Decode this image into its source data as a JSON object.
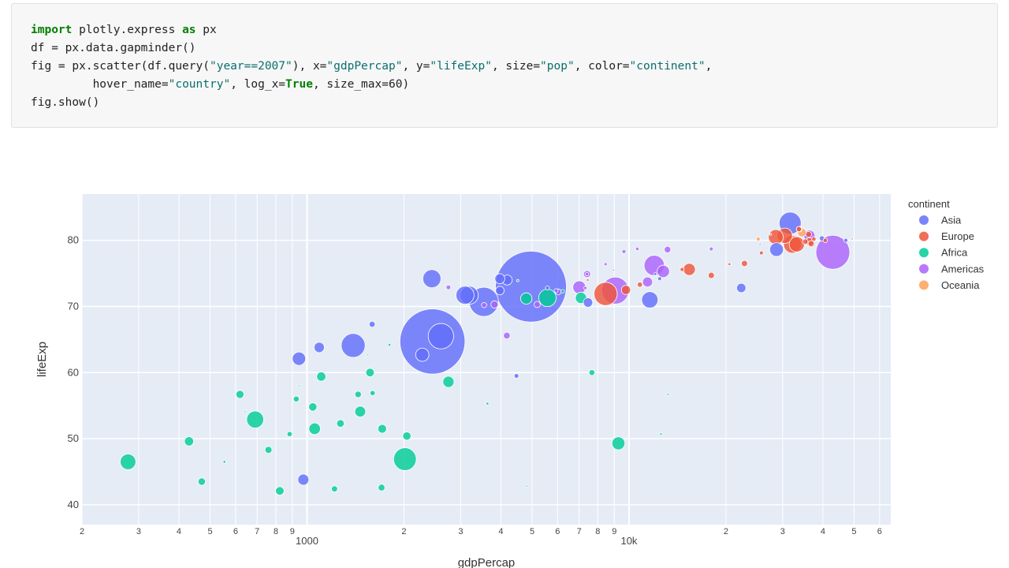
{
  "code": {
    "line1": {
      "kw": "import",
      "mid": " plotly.express ",
      "kw2": "as",
      "end": " px"
    },
    "line2": "df = px.data.gapminder()",
    "line3": {
      "a": "fig = px.scatter(df.query(",
      "s1": "\"year==2007\"",
      "b": "), x=",
      "s2": "\"gdpPercap\"",
      "c": ", y=",
      "s3": "\"lifeExp\"",
      "d": ", size=",
      "s4": "\"pop\"",
      "e": ", color=",
      "s5": "\"continent\"",
      "f": ","
    },
    "line4": {
      "a": "         hover_name=",
      "s1": "\"country\"",
      "b": ", log_x=",
      "kw": "True",
      "c": ", size_max=60)"
    },
    "line5": "fig.show()"
  },
  "chart_data": {
    "type": "scatter",
    "xlabel": "gdpPercap",
    "ylabel": "lifeExp",
    "x_scale": "log",
    "xlim": [
      200,
      65000
    ],
    "ylim": [
      37,
      87
    ],
    "x_ticks_major": [
      {
        "v": 1000,
        "label": "1000"
      },
      {
        "v": 10000,
        "label": "10k"
      }
    ],
    "x_ticks_minor": [
      {
        "v": 200,
        "label": "2"
      },
      {
        "v": 300,
        "label": "3"
      },
      {
        "v": 400,
        "label": "4"
      },
      {
        "v": 500,
        "label": "5"
      },
      {
        "v": 600,
        "label": "6"
      },
      {
        "v": 700,
        "label": "7"
      },
      {
        "v": 800,
        "label": "8"
      },
      {
        "v": 900,
        "label": "9"
      },
      {
        "v": 2000,
        "label": "2"
      },
      {
        "v": 3000,
        "label": "3"
      },
      {
        "v": 4000,
        "label": "4"
      },
      {
        "v": 5000,
        "label": "5"
      },
      {
        "v": 6000,
        "label": "6"
      },
      {
        "v": 7000,
        "label": "7"
      },
      {
        "v": 8000,
        "label": "8"
      },
      {
        "v": 9000,
        "label": "9"
      },
      {
        "v": 20000,
        "label": "2"
      },
      {
        "v": 30000,
        "label": "3"
      },
      {
        "v": 40000,
        "label": "4"
      },
      {
        "v": 50000,
        "label": "5"
      },
      {
        "v": 60000,
        "label": "6"
      }
    ],
    "y_ticks": [
      40,
      50,
      60,
      70,
      80
    ],
    "grid": true,
    "legend_title": "continent",
    "legend_position": "right",
    "series": [
      {
        "name": "Asia",
        "color": "#636efa",
        "points": [
          [
            4959,
            73.0,
            1318
          ],
          [
            2452,
            64.7,
            1110
          ],
          [
            3541,
            70.7,
            224
          ],
          [
            31656,
            82.6,
            127
          ],
          [
            1391,
            64.1,
            150
          ],
          [
            2605,
            65.5,
            169
          ],
          [
            3190,
            71.7,
            85
          ],
          [
            2280,
            62.7,
            46
          ],
          [
            11606,
            71.0,
            70
          ],
          [
            7458,
            70.6,
            23
          ],
          [
            22316,
            72.8,
            23
          ],
          [
            39725,
            80.3,
            7
          ],
          [
            28718,
            78.6,
            49
          ],
          [
            47143,
            80.0,
            4.5
          ],
          [
            944,
            62.1,
            47
          ],
          [
            1091,
            63.8,
            28
          ],
          [
            4471,
            59.5,
            5.9
          ],
          [
            1593,
            67.3,
            9.5
          ],
          [
            974,
            43.8,
            32
          ],
          [
            3971,
            72.4,
            19
          ],
          [
            3095,
            71.7,
            85
          ],
          [
            2442,
            74.2,
            86
          ],
          [
            4185,
            74.0,
            26
          ],
          [
            5937,
            72.4,
            4.1
          ],
          [
            3970,
            74.2,
            26
          ],
          [
            12451,
            74.2,
            4
          ],
          [
            25523,
            79.4,
            1
          ],
          [
            5581,
            72.8,
            4
          ],
          [
            12057,
            74.9,
            2
          ]
        ]
      },
      {
        "name": "Europe",
        "color": "#ef553b",
        "points": [
          [
            32170,
            79.4,
            82
          ],
          [
            30470,
            80.7,
            61
          ],
          [
            33203,
            79.4,
            60
          ],
          [
            28570,
            80.5,
            58
          ],
          [
            36798,
            79.5,
            10
          ],
          [
            36126,
            80.9,
            9
          ],
          [
            33692,
            81.7,
            7
          ],
          [
            37506,
            80.2,
            5
          ],
          [
            40676,
            80.0,
            5
          ],
          [
            35278,
            79.8,
            8
          ],
          [
            20510,
            76.4,
            2
          ],
          [
            22833,
            76.5,
            10
          ],
          [
            15390,
            75.6,
            38
          ],
          [
            9786,
            72.5,
            22
          ],
          [
            8459,
            71.9,
            141
          ],
          [
            10808,
            73.3,
            7
          ],
          [
            7446,
            74.0,
            1.6
          ],
          [
            18009,
            74.7,
            10
          ],
          [
            14619,
            75.6,
            4.4
          ],
          [
            49357,
            80.2,
            0.3
          ],
          [
            36319,
            79.8,
            16
          ],
          [
            33860,
            81.7,
            8
          ],
          [
            27538,
            80.9,
            0.3
          ],
          [
            25768,
            78.1,
            4.1
          ]
        ]
      },
      {
        "name": "Africa",
        "color": "#00cc96",
        "points": [
          [
            2014,
            46.9,
            135
          ],
          [
            690,
            52.9,
            76
          ],
          [
            5581,
            71.3,
            80
          ],
          [
            7093,
            71.3,
            33
          ],
          [
            9270,
            49.3,
            44
          ],
          [
            1463,
            54.1,
            31
          ],
          [
            2749,
            58.6,
            33
          ],
          [
            278,
            46.5,
            64
          ],
          [
            1107,
            59.4,
            22
          ],
          [
            1056,
            51.5,
            35
          ],
          [
            4797,
            71.2,
            34
          ],
          [
            1569,
            60.0,
            19
          ],
          [
            1712,
            51.5,
            20
          ],
          [
            1042,
            54.8,
            18
          ],
          [
            2042,
            50.4,
            18
          ],
          [
            926,
            56.0,
            9
          ],
          [
            471,
            43.5,
            14
          ],
          [
            823,
            42.1,
            19
          ],
          [
            1598,
            56.9,
            7
          ],
          [
            759,
            48.3,
            13
          ],
          [
            1270,
            52.3,
            15
          ],
          [
            619,
            56.7,
            17
          ],
          [
            430,
            49.6,
            22
          ],
          [
            1441,
            56.7,
            11
          ],
          [
            1704,
            42.6,
            12
          ],
          [
            1217,
            42.4,
            10
          ],
          [
            883,
            50.7,
            7
          ],
          [
            12570,
            50.7,
            1.6
          ],
          [
            3633,
            55.3,
            2
          ],
          [
            7670,
            60.0,
            9
          ],
          [
            4513,
            73.9,
            1.4
          ],
          [
            1803,
            64.2,
            2
          ],
          [
            641,
            54.1,
            0.8
          ],
          [
            4811,
            42.8,
            1.1
          ],
          [
            554,
            46.5,
            2
          ],
          [
            945,
            58.0,
            0.2
          ],
          [
            1545,
            62.7,
            0.8
          ],
          [
            13206,
            56.7,
            1.3
          ],
          [
            6223,
            72.3,
            3.2
          ]
        ]
      },
      {
        "name": "Americas",
        "color": "#ab63fa",
        "points": [
          [
            42952,
            78.2,
            301
          ],
          [
            9065,
            72.4,
            190
          ],
          [
            11978,
            76.2,
            108
          ],
          [
            7007,
            72.9,
            44
          ],
          [
            12779,
            75.3,
            40
          ],
          [
            11415,
            73.7,
            26
          ],
          [
            36319,
            80.7,
            33
          ],
          [
            7409,
            74.9,
            13
          ],
          [
            4173,
            65.6,
            12
          ],
          [
            3822,
            70.3,
            14
          ],
          [
            5186,
            70.3,
            10
          ],
          [
            6025,
            72.2,
            9
          ],
          [
            3548,
            70.2,
            7
          ],
          [
            2749,
            72.9,
            5.7
          ],
          [
            9645,
            78.3,
            4.1
          ],
          [
            13172,
            78.6,
            11
          ],
          [
            7321,
            72.8,
            2.8
          ],
          [
            8948,
            75.5,
            1.1
          ],
          [
            10611,
            78.7,
            3
          ],
          [
            8458,
            76.4,
            2.5
          ],
          [
            18009,
            78.7,
            4
          ],
          [
            7408,
            74.9,
            3
          ]
        ]
      },
      {
        "name": "Oceania",
        "color": "#fea15a",
        "points": [
          [
            34435,
            81.2,
            20
          ],
          [
            25185,
            80.2,
            4.1
          ]
        ]
      }
    ]
  }
}
